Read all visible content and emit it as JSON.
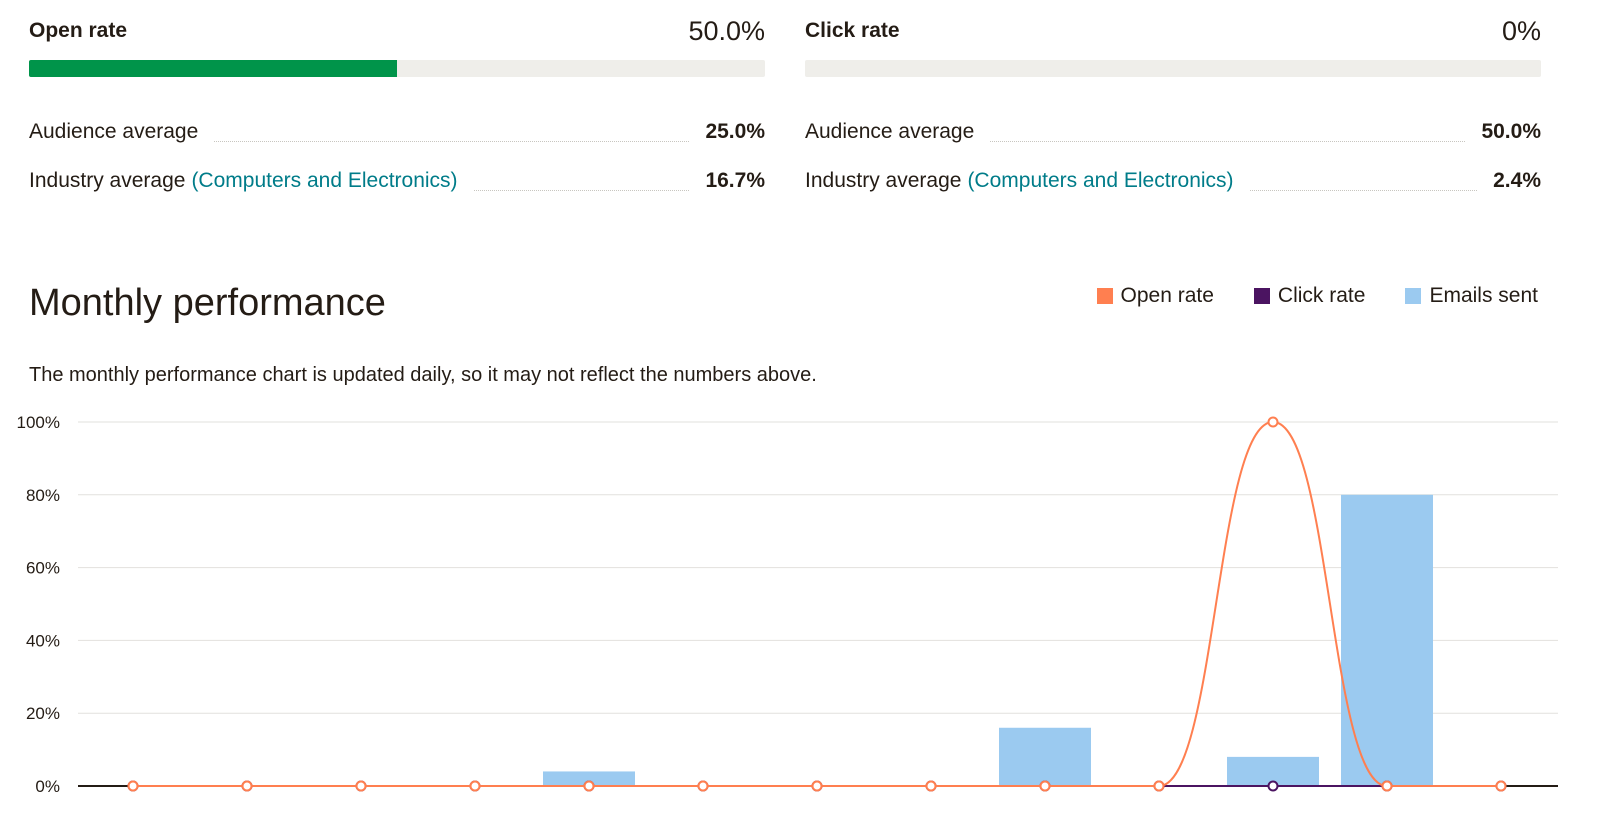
{
  "open_rate": {
    "title": "Open rate",
    "value": "50.0%",
    "bar_fraction": 0.5,
    "audience_label": "Audience average",
    "audience_value": "25.0%",
    "industry_label": "Industry average",
    "industry_link": "(Computers and Electronics)",
    "industry_value": "16.7%"
  },
  "click_rate": {
    "title": "Click rate",
    "value": "0%",
    "bar_fraction": 0,
    "audience_label": "Audience average",
    "audience_value": "50.0%",
    "industry_label": "Industry average",
    "industry_link": "(Computers and Electronics)",
    "industry_value": "2.4%"
  },
  "section": {
    "title": "Monthly performance",
    "note": "The monthly performance chart is updated daily, so it may not reflect the numbers above."
  },
  "legend": [
    {
      "label": "Open rate",
      "color": "#ff7f50"
    },
    {
      "label": "Click rate",
      "color": "#4b1461"
    },
    {
      "label": "Emails sent",
      "color": "#9bcaf0"
    }
  ],
  "colors": {
    "accent_bar": "#00944a",
    "bar_track": "#efeeea",
    "link": "#007c89"
  },
  "chart_data": {
    "type": "bar",
    "ylim": [
      0,
      100
    ],
    "yticks": [
      "0%",
      "20%",
      "40%",
      "60%",
      "80%",
      "100%"
    ],
    "grid": true,
    "legend_position": "top-right",
    "series": [
      {
        "name": "Open rate",
        "type": "line",
        "color": "#ff7f50",
        "values": [
          0,
          0,
          0,
          0,
          0,
          0,
          0,
          0,
          0,
          0,
          100,
          0,
          0
        ]
      },
      {
        "name": "Click rate",
        "type": "line",
        "color": "#4b1461",
        "values": [
          0,
          0,
          0,
          0,
          0,
          0,
          0,
          0,
          0,
          0,
          0,
          0,
          0
        ]
      },
      {
        "name": "Emails sent",
        "type": "bar",
        "color": "#9bcaf0",
        "values": [
          0,
          0,
          0,
          0,
          4,
          0,
          0,
          0,
          16,
          0,
          8,
          80,
          0
        ]
      }
    ]
  }
}
